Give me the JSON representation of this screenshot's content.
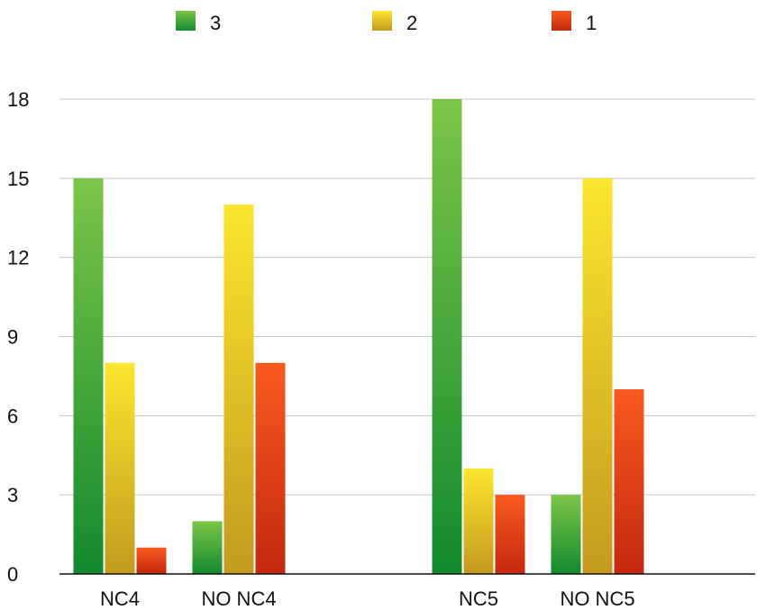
{
  "chart_data": {
    "type": "bar",
    "categories": [
      "NC4",
      "NO NC4",
      "NC5",
      "NO NC5"
    ],
    "series": [
      {
        "name": "3",
        "values": [
          15,
          2,
          18,
          3
        ],
        "color": "#2E9E3A"
      },
      {
        "name": "2",
        "values": [
          8,
          14,
          4,
          15
        ],
        "color": "#E8C81E"
      },
      {
        "name": "1",
        "values": [
          1,
          8,
          3,
          7
        ],
        "color": "#E53A12"
      }
    ],
    "yticks": [
      0,
      3,
      6,
      9,
      12,
      15,
      18
    ],
    "ylim": [
      0,
      18
    ],
    "grid": true,
    "legend_position": "top"
  }
}
